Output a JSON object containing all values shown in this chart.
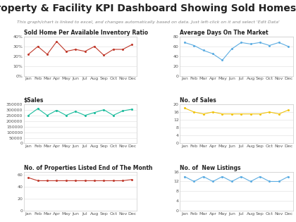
{
  "title": "Property & Facility KPI Dashboard Showing Sold Homes...",
  "subtitle": "This graph/chart is linked to excel, and changes automatically based on data. Just left-click on it and select 'Edit Data'",
  "months": [
    "Jan",
    "Feb",
    "Mar",
    "Apr",
    "May",
    "Jun",
    "Jul",
    "Aug",
    "Sep",
    "Oct",
    "Nov",
    "Dec"
  ],
  "charts": [
    {
      "title": "Sold Home Per Available Inventory Ratio",
      "data": [
        0.22,
        0.3,
        0.22,
        0.35,
        0.25,
        0.27,
        0.25,
        0.3,
        0.21,
        0.27,
        0.27,
        0.32
      ],
      "color": "#c0392b",
      "ylim": [
        0.0,
        0.4
      ],
      "yticks": [
        0.0,
        0.1,
        0.2,
        0.3,
        0.4
      ],
      "ytick_labels": [
        "0%",
        "10%",
        "20%",
        "30%",
        "40%"
      ]
    },
    {
      "title": "Average Days On The Market",
      "data": [
        68,
        62,
        52,
        45,
        32,
        55,
        68,
        65,
        68,
        62,
        68,
        60
      ],
      "color": "#5dade2",
      "ylim": [
        0,
        80
      ],
      "yticks": [
        0,
        20,
        40,
        60,
        80
      ],
      "ytick_labels": [
        "0",
        "20",
        "40",
        "60",
        "80"
      ]
    },
    {
      "title": "$Sales",
      "data": [
        250000,
        310000,
        250000,
        295000,
        250000,
        285000,
        250000,
        275000,
        300000,
        250000,
        290000,
        305000
      ],
      "color": "#1abc9c",
      "ylim": [
        0,
        350000
      ],
      "yticks": [
        0,
        50000,
        100000,
        150000,
        200000,
        250000,
        300000,
        350000
      ],
      "ytick_labels": [
        "0",
        "50000",
        "100000",
        "150000",
        "200000",
        "250000",
        "300000",
        "350000"
      ]
    },
    {
      "title": "No. of Sales",
      "data": [
        18,
        16,
        15,
        16,
        15,
        15,
        15,
        15,
        15,
        16,
        15,
        17
      ],
      "color": "#f1c40f",
      "ylim": [
        0,
        20
      ],
      "yticks": [
        0,
        4,
        8,
        12,
        16,
        20
      ],
      "ytick_labels": [
        "0",
        "4",
        "8",
        "12",
        "16",
        "20"
      ]
    },
    {
      "title": "No. of Properties Listed End of The Month",
      "data": [
        55,
        50,
        50,
        50,
        50,
        50,
        50,
        50,
        50,
        50,
        50,
        52
      ],
      "color": "#c0392b",
      "ylim": [
        0,
        65
      ],
      "yticks": [
        0,
        20,
        40,
        60
      ],
      "ytick_labels": [
        "0",
        "20",
        "40",
        "60"
      ]
    },
    {
      "title": "No. of  New Listings",
      "data": [
        14,
        12,
        14,
        12,
        14,
        12,
        14,
        12,
        14,
        12,
        12,
        14
      ],
      "color": "#5dade2",
      "ylim": [
        0,
        16
      ],
      "yticks": [
        0,
        4,
        8,
        12,
        16
      ],
      "ytick_labels": [
        "0",
        "4",
        "8",
        "12",
        "16"
      ]
    }
  ],
  "bg_color": "#ffffff",
  "title_fontsize": 10,
  "subtitle_fontsize": 4.5,
  "chart_title_fontsize": 5.5,
  "tick_fontsize": 4.5,
  "grid_color": "#dddddd",
  "border_color": "#cccccc"
}
